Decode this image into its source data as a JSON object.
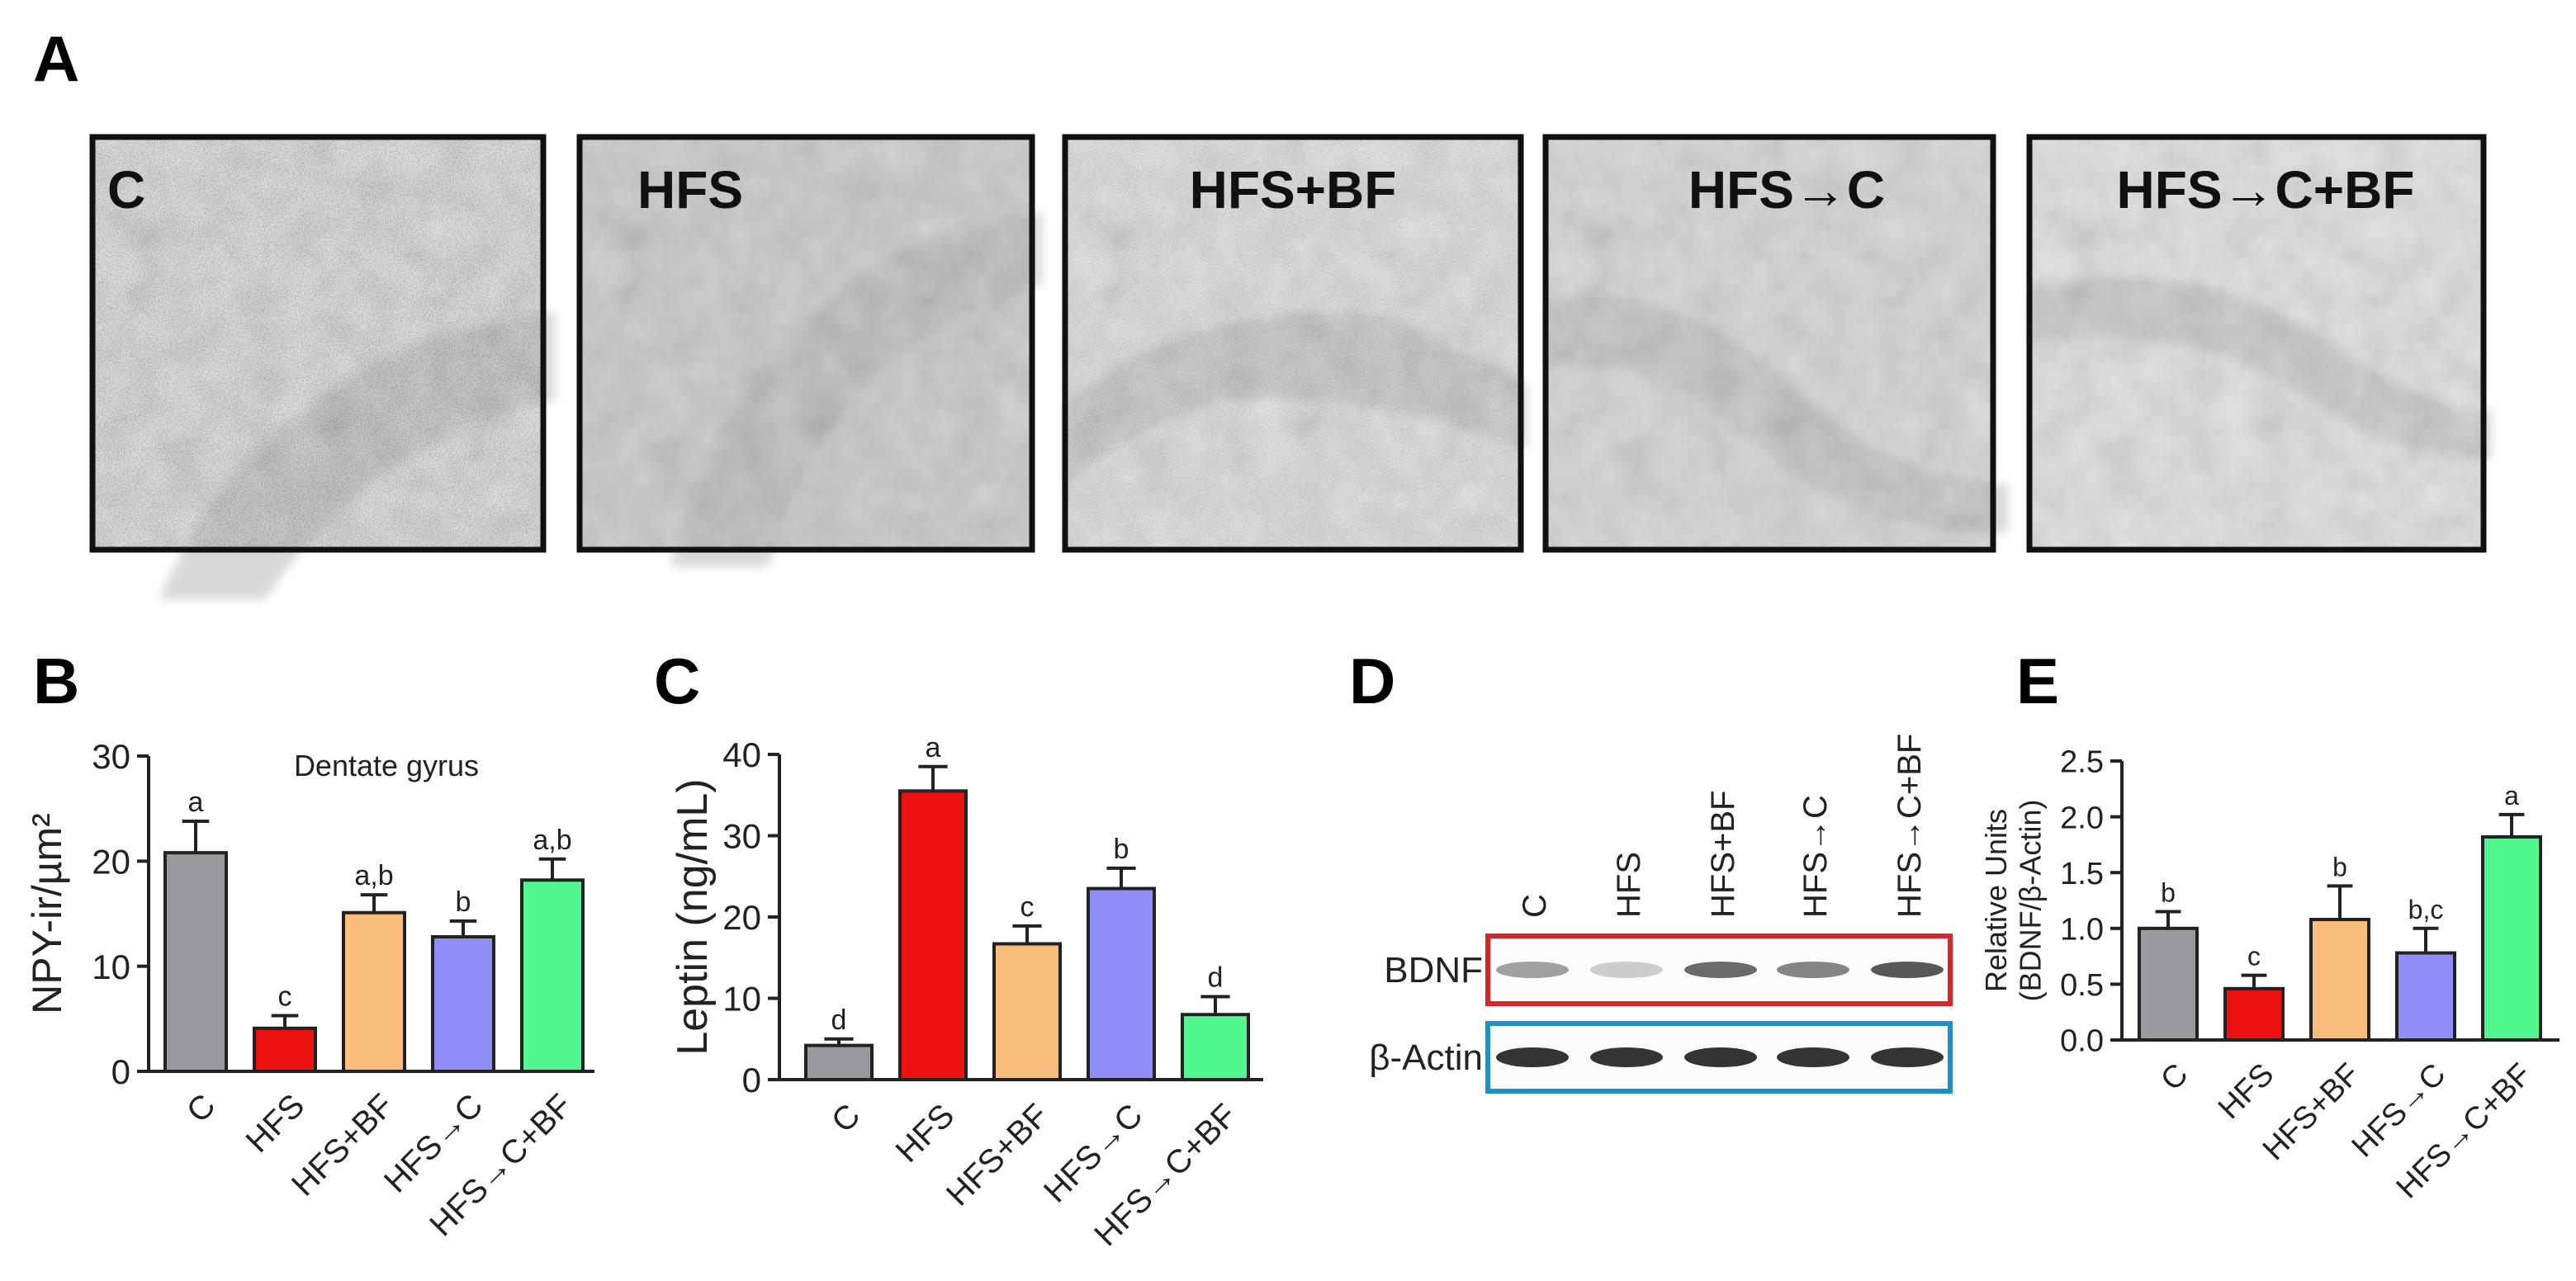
{
  "panel_letters": {
    "a": "A",
    "b": "B",
    "c": "C",
    "d": "D",
    "e": "E"
  },
  "micrographs": [
    {
      "label": "C"
    },
    {
      "label": "HFS"
    },
    {
      "label": "HFS+BF"
    },
    {
      "label": "HFS→C"
    },
    {
      "label": "HFS→C+BF"
    }
  ],
  "colors": {
    "C": "#9a9a9e",
    "HFS": "#ee1111",
    "HFS+BF": "#fbbd7b",
    "HFS→C": "#8f8ff7",
    "HFS→C+BF": "#52f78f",
    "bdnf_box": "#d62728",
    "actin_box": "#1f8fc4"
  },
  "chart_data": [
    {
      "panel": "B",
      "type": "bar",
      "title": "Dentate gyrus",
      "ylabel": "NPY-ir/µm²",
      "categories": [
        "C",
        "HFS",
        "HFS+BF",
        "HFS→C",
        "HFS→C+BF"
      ],
      "values": [
        20.8,
        4.1,
        15.1,
        12.8,
        18.2
      ],
      "errors": [
        3.0,
        1.2,
        1.7,
        1.5,
        2.0
      ],
      "letters": [
        "a",
        "c",
        "a,b",
        "b",
        "a,b"
      ],
      "ylim": [
        0,
        30
      ],
      "yticks": [
        "0",
        "10",
        "20",
        "30"
      ]
    },
    {
      "panel": "C",
      "type": "bar",
      "ylabel": "Leptin (ng/mL)",
      "categories": [
        "C",
        "HFS",
        "HFS+BF",
        "HFS→C",
        "HFS→C+BF"
      ],
      "values": [
        4.2,
        35.5,
        16.7,
        23.5,
        8.0
      ],
      "errors": [
        0.8,
        3.0,
        2.2,
        2.5,
        2.2
      ],
      "letters": [
        "d",
        "a",
        "c",
        "b",
        "d"
      ],
      "ylim": [
        0,
        40
      ],
      "yticks": [
        "0",
        "10",
        "20",
        "30",
        "40"
      ]
    },
    {
      "panel": "E",
      "type": "bar",
      "ylabel": "Relative Units (BDNF/β-Actin)",
      "ylabel_lines": [
        "Relative Units",
        "(BDNF/β-Actin)"
      ],
      "categories": [
        "C",
        "HFS",
        "HFS+BF",
        "HFS→C",
        "HFS→C+BF"
      ],
      "values": [
        1.0,
        0.46,
        1.08,
        0.78,
        1.82
      ],
      "errors": [
        0.15,
        0.12,
        0.3,
        0.22,
        0.2
      ],
      "letters": [
        "b",
        "c",
        "b",
        "b,c",
        "a"
      ],
      "ylim": [
        0,
        2.5
      ],
      "yticks": [
        "0.0",
        "0.5",
        "1.0",
        "1.5",
        "2.0",
        "2.5"
      ]
    }
  ],
  "blot": {
    "lanes": [
      "C",
      "HFS",
      "HFS+BF",
      "HFS→C",
      "HFS→C+BF"
    ],
    "rows": [
      {
        "label": "BDNF",
        "intensity": [
          0.4,
          0.15,
          0.7,
          0.55,
          0.8
        ]
      },
      {
        "label": "β-Actin",
        "intensity": [
          1.0,
          1.0,
          1.0,
          1.0,
          1.0
        ]
      }
    ]
  }
}
